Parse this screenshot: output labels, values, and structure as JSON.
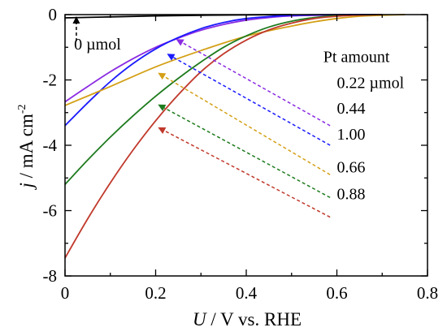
{
  "chart_data": {
    "type": "line",
    "xlabel_var": "U",
    "xlabel_rest": " / V vs. RHE",
    "ylabel_var": "j",
    "ylabel_rest": " / mA cm",
    "ylabel_sup": "-2",
    "xlim": [
      0,
      0.8
    ],
    "ylim": [
      -8,
      0
    ],
    "x_ticks": [
      "0",
      "0.2",
      "0.4",
      "0.6",
      "0.8"
    ],
    "y_ticks": [
      "0",
      "-2",
      "-4",
      "-6",
      "-8"
    ],
    "grid": false,
    "legend_title": "Pt amount",
    "baseline_label": "0 µmol",
    "series": [
      {
        "name": "0.22 µmol",
        "color": "#8a2be2",
        "points": [
          [
            0,
            -2.67
          ],
          [
            0.05,
            -2.2
          ],
          [
            0.1,
            -1.75
          ],
          [
            0.15,
            -1.35
          ],
          [
            0.2,
            -1.0
          ],
          [
            0.25,
            -0.72
          ],
          [
            0.3,
            -0.48
          ],
          [
            0.35,
            -0.3
          ],
          [
            0.4,
            -0.17
          ],
          [
            0.45,
            -0.09
          ],
          [
            0.5,
            -0.04
          ],
          [
            0.6,
            -0.01
          ],
          [
            0.7,
            0
          ]
        ]
      },
      {
        "name": "0.44",
        "color": "#1a1aff",
        "points": [
          [
            0,
            -3.4
          ],
          [
            0.05,
            -2.7
          ],
          [
            0.1,
            -2.05
          ],
          [
            0.15,
            -1.5
          ],
          [
            0.2,
            -1.05
          ],
          [
            0.25,
            -0.7
          ],
          [
            0.3,
            -0.43
          ],
          [
            0.35,
            -0.24
          ],
          [
            0.4,
            -0.12
          ],
          [
            0.45,
            -0.06
          ],
          [
            0.5,
            -0.02
          ],
          [
            0.6,
            0
          ],
          [
            0.7,
            0
          ]
        ]
      },
      {
        "name": "1.00",
        "color": "#d4a017",
        "points": [
          [
            0,
            -2.78
          ],
          [
            0.1,
            -2.2
          ],
          [
            0.2,
            -1.6
          ],
          [
            0.3,
            -1.1
          ],
          [
            0.4,
            -0.66
          ],
          [
            0.5,
            -0.35
          ],
          [
            0.55,
            -0.22
          ],
          [
            0.6,
            -0.12
          ],
          [
            0.65,
            -0.05
          ],
          [
            0.7,
            -0.02
          ],
          [
            0.75,
            0
          ]
        ]
      },
      {
        "name": "0.66",
        "color": "#1e7b1e",
        "points": [
          [
            0,
            -5.2
          ],
          [
            0.05,
            -4.45
          ],
          [
            0.1,
            -3.75
          ],
          [
            0.15,
            -3.1
          ],
          [
            0.2,
            -2.5
          ],
          [
            0.25,
            -1.95
          ],
          [
            0.3,
            -1.45
          ],
          [
            0.35,
            -1.0
          ],
          [
            0.4,
            -0.65
          ],
          [
            0.45,
            -0.38
          ],
          [
            0.5,
            -0.2
          ],
          [
            0.55,
            -0.09
          ],
          [
            0.6,
            -0.03
          ],
          [
            0.65,
            -0.01
          ],
          [
            0.7,
            0
          ]
        ]
      },
      {
        "name": "0.88",
        "color": "#c0392b",
        "points": [
          [
            0,
            -7.45
          ],
          [
            0.05,
            -6.25
          ],
          [
            0.1,
            -5.15
          ],
          [
            0.15,
            -4.15
          ],
          [
            0.2,
            -3.25
          ],
          [
            0.25,
            -2.45
          ],
          [
            0.3,
            -1.75
          ],
          [
            0.35,
            -1.2
          ],
          [
            0.4,
            -0.78
          ],
          [
            0.45,
            -0.47
          ],
          [
            0.5,
            -0.26
          ],
          [
            0.55,
            -0.12
          ],
          [
            0.6,
            -0.05
          ],
          [
            0.65,
            -0.015
          ],
          [
            0.7,
            0
          ]
        ]
      }
    ],
    "baseline": {
      "color": "#000000",
      "points": [
        [
          0,
          -0.1
        ],
        [
          0.1,
          -0.07
        ],
        [
          0.2,
          -0.04
        ],
        [
          0.3,
          -0.02
        ],
        [
          0.4,
          -0.01
        ],
        [
          0.5,
          0
        ]
      ]
    },
    "arrows": [
      {
        "series": 0,
        "from": [
          0.585,
          -3.4
        ],
        "to": [
          0.245,
          -0.75
        ]
      },
      {
        "series": 1,
        "from": [
          0.585,
          -4.0
        ],
        "to": [
          0.225,
          -1.2
        ]
      },
      {
        "series": 2,
        "from": [
          0.585,
          -4.9
        ],
        "to": [
          0.205,
          -1.78
        ]
      },
      {
        "series": 3,
        "from": [
          0.585,
          -5.6
        ],
        "to": [
          0.205,
          -2.75
        ]
      },
      {
        "series": 4,
        "from": [
          0.585,
          -6.2
        ],
        "to": [
          0.205,
          -3.45
        ]
      },
      {
        "series": -1,
        "from": [
          0.025,
          -0.82
        ],
        "to": [
          0.025,
          -0.05
        ]
      }
    ],
    "label_positions": {
      "legend_title": [
        0.57,
        -1.45
      ],
      "series_labels": [
        [
          0.6,
          -2.25
        ],
        [
          0.6,
          -3.03
        ],
        [
          0.6,
          -3.83
        ],
        [
          0.6,
          -4.83
        ],
        [
          0.6,
          -5.65
        ]
      ],
      "baseline_label": [
        0.02,
        -1.07
      ]
    }
  }
}
